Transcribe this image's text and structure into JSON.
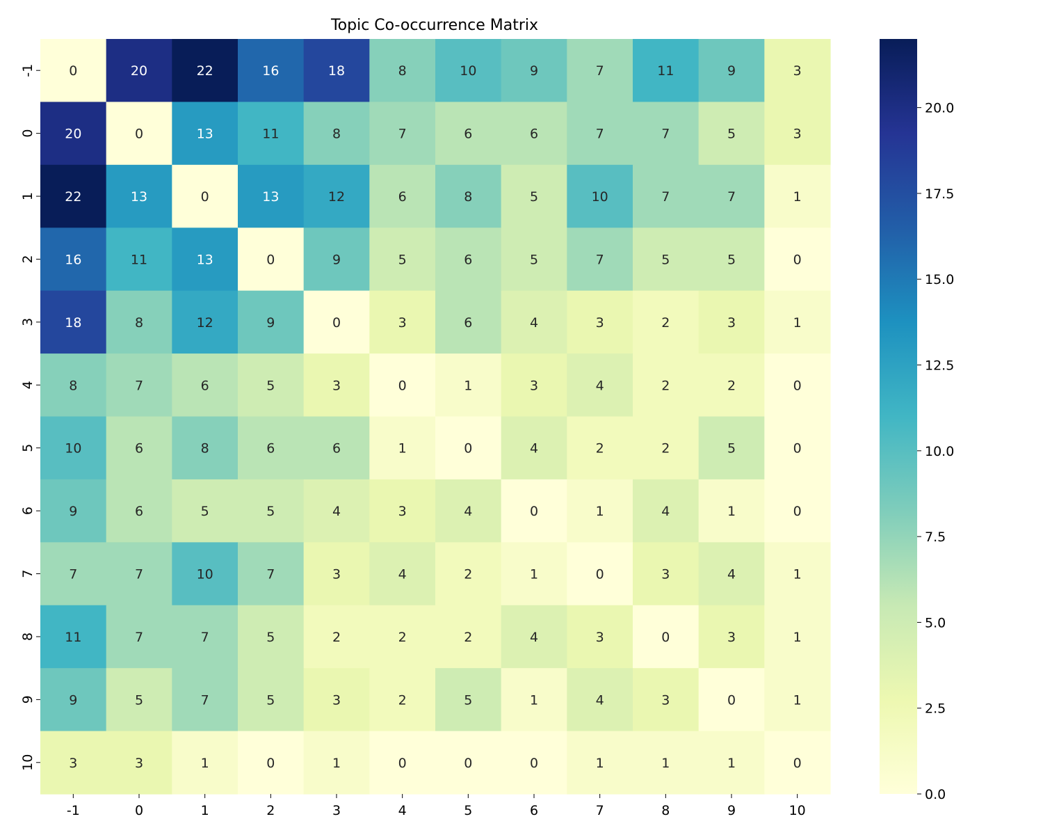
{
  "chart_data": {
    "type": "heatmap",
    "title": "Topic Co-occurrence Matrix",
    "xlabel": "",
    "ylabel": "",
    "x_categories": [
      "-1",
      "0",
      "1",
      "2",
      "3",
      "4",
      "5",
      "6",
      "7",
      "8",
      "9",
      "10"
    ],
    "y_categories": [
      "-1",
      "0",
      "1",
      "2",
      "3",
      "4",
      "5",
      "6",
      "7",
      "8",
      "9",
      "10"
    ],
    "values": [
      [
        0,
        20,
        22,
        16,
        18,
        8,
        10,
        9,
        7,
        11,
        9,
        3
      ],
      [
        20,
        0,
        13,
        11,
        8,
        7,
        6,
        6,
        7,
        7,
        5,
        3
      ],
      [
        22,
        13,
        0,
        13,
        12,
        6,
        8,
        5,
        10,
        7,
        7,
        1
      ],
      [
        16,
        11,
        13,
        0,
        9,
        5,
        6,
        5,
        7,
        5,
        5,
        0
      ],
      [
        18,
        8,
        12,
        9,
        0,
        3,
        6,
        4,
        3,
        2,
        3,
        1
      ],
      [
        8,
        7,
        6,
        5,
        3,
        0,
        1,
        3,
        4,
        2,
        2,
        0
      ],
      [
        10,
        6,
        8,
        6,
        6,
        1,
        0,
        4,
        2,
        2,
        5,
        0
      ],
      [
        9,
        6,
        5,
        5,
        4,
        3,
        4,
        0,
        1,
        4,
        1,
        0
      ],
      [
        7,
        7,
        10,
        7,
        3,
        4,
        2,
        1,
        0,
        3,
        4,
        1
      ],
      [
        11,
        7,
        7,
        5,
        2,
        2,
        2,
        4,
        3,
        0,
        3,
        1
      ],
      [
        9,
        5,
        7,
        5,
        3,
        2,
        5,
        1,
        4,
        3,
        0,
        1
      ],
      [
        3,
        3,
        1,
        0,
        1,
        0,
        0,
        0,
        1,
        1,
        1,
        0
      ]
    ],
    "vmin": 0,
    "vmax": 22,
    "colormap": "YlGnBu",
    "colorbar_ticks": [
      "0.0",
      "2.5",
      "5.0",
      "7.5",
      "10.0",
      "12.5",
      "15.0",
      "17.5",
      "20.0"
    ],
    "colorbar_tick_values": [
      0,
      2.5,
      5,
      7.5,
      10,
      12.5,
      15,
      17.5,
      20
    ],
    "annotated": true
  }
}
